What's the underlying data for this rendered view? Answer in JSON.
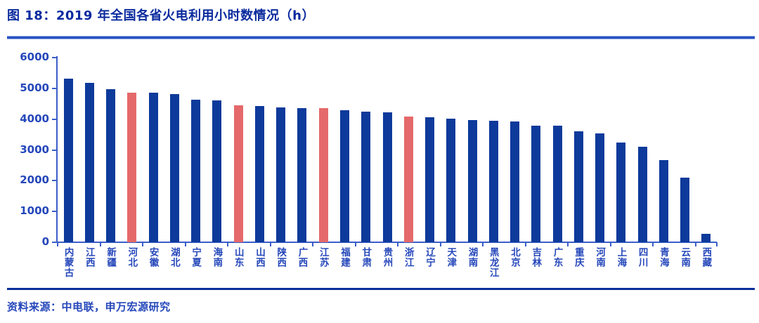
{
  "figure": {
    "title": "图 18：2019 年全国各省火电利用小时数情况（h）",
    "source": "资料来源：中电联，申万宏源研究"
  },
  "colors": {
    "bar_blue": "#0d3a9b",
    "bar_highlight_red": "#e5696b",
    "axis_blue": "#3b5ec9",
    "tick_label_blue": "#2547ba",
    "title_blue": "#0a2a9e"
  },
  "chart_data": {
    "type": "bar",
    "title": "2019 年全国各省火电利用小时数情况（h）",
    "xlabel": "",
    "ylabel": "",
    "ylim": [
      0,
      6000
    ],
    "yticks": [
      0,
      1000,
      2000,
      3000,
      4000,
      5000,
      6000
    ],
    "grid": false,
    "legend": false,
    "categories": [
      "内蒙古",
      "江西",
      "新疆",
      "河北",
      "安徽",
      "湖北",
      "宁夏",
      "海南",
      "山东",
      "山西",
      "陕西",
      "广西",
      "江苏",
      "福建",
      "甘肃",
      "贵州",
      "浙江",
      "辽宁",
      "天津",
      "湖南",
      "黑龙江",
      "北京",
      "吉林",
      "广东",
      "重庆",
      "河南",
      "上海",
      "四川",
      "青海",
      "云南",
      "西藏"
    ],
    "values": [
      5310,
      5180,
      4970,
      4870,
      4850,
      4820,
      4630,
      4600,
      4460,
      4430,
      4390,
      4360,
      4350,
      4300,
      4250,
      4210,
      4080,
      4070,
      4020,
      3980,
      3950,
      3930,
      3790,
      3780,
      3600,
      3530,
      3250,
      3100,
      2670,
      2100,
      280
    ],
    "highlighted_categories": [
      "河北",
      "山东",
      "江苏",
      "浙江"
    ]
  }
}
